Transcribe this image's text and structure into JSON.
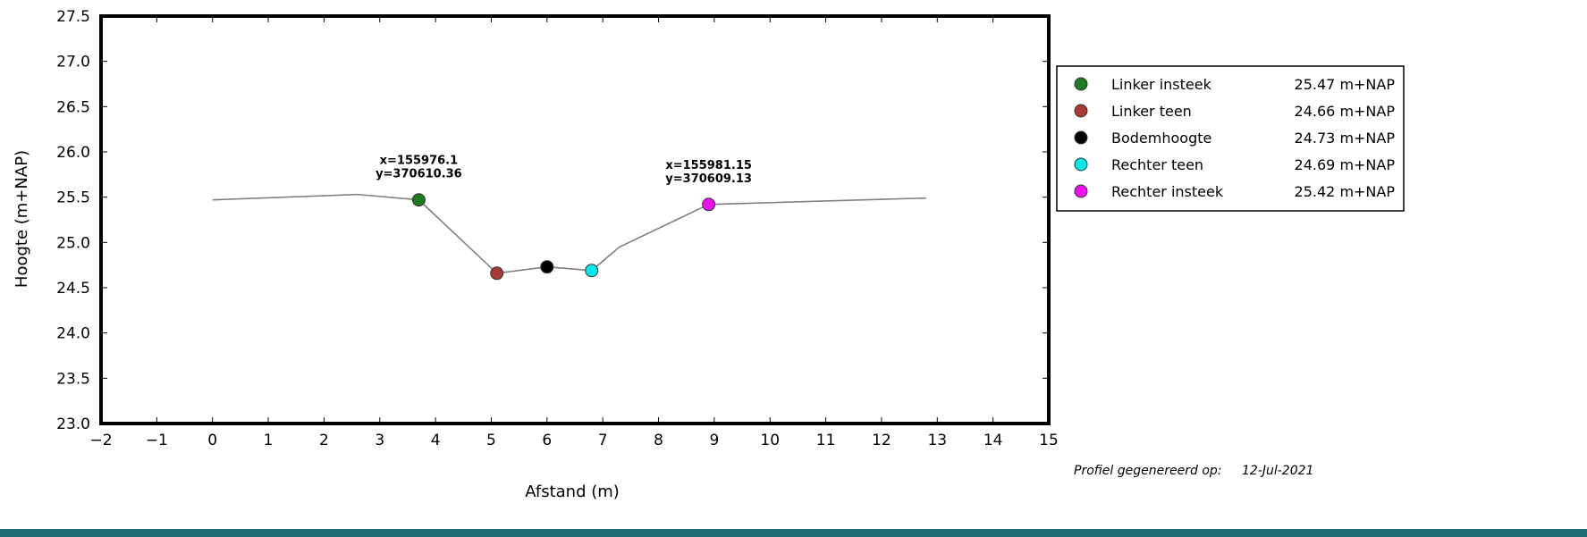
{
  "chart_data": {
    "type": "line",
    "xlabel": "Afstand (m)",
    "ylabel": "Hoogte (m+NAP)",
    "xlim": [
      -2,
      15
    ],
    "ylim": [
      23.0,
      27.5
    ],
    "x_ticks": [
      -2,
      -1,
      0,
      1,
      2,
      3,
      4,
      5,
      6,
      7,
      8,
      9,
      10,
      11,
      12,
      13,
      14,
      15
    ],
    "y_ticks": [
      23.0,
      23.5,
      24.0,
      24.5,
      25.0,
      25.5,
      26.0,
      26.5,
      27.0,
      27.5
    ],
    "grid": false,
    "profile": {
      "x": [
        0,
        2.6,
        3.7,
        5.1,
        6.0,
        6.8,
        7.3,
        8.9,
        12.8
      ],
      "y": [
        25.47,
        25.53,
        25.47,
        24.66,
        24.73,
        24.69,
        24.95,
        25.42,
        25.49
      ],
      "color": "#808080"
    },
    "points": [
      {
        "name": "Linker insteek",
        "value_label": "25.47 m+NAP",
        "x": 3.7,
        "y": 25.47,
        "color": "#1e7a1e"
      },
      {
        "name": "Linker teen",
        "value_label": "24.66 m+NAP",
        "x": 5.1,
        "y": 24.66,
        "color": "#a93a37"
      },
      {
        "name": "Bodemhoogte",
        "value_label": "24.73 m+NAP",
        "x": 6.0,
        "y": 24.73,
        "color": "#000000"
      },
      {
        "name": "Rechter teen",
        "value_label": "24.69 m+NAP",
        "x": 6.8,
        "y": 24.69,
        "color": "#00e8f0"
      },
      {
        "name": "Rechter insteek",
        "value_label": "25.42 m+NAP",
        "x": 8.9,
        "y": 25.42,
        "color": "#ee11ee"
      }
    ],
    "annotations": [
      {
        "lines": [
          "x=155976.1",
          "y=370610.36"
        ],
        "x": 3.7,
        "y": 25.47
      },
      {
        "lines": [
          "x=155981.15",
          "y=370609.13"
        ],
        "x": 8.9,
        "y": 25.42
      }
    ],
    "legend_position": "right-top"
  },
  "footer": {
    "generated_label": "Profiel gegenereerd op:",
    "generated_date": "12-Jul-2021"
  }
}
